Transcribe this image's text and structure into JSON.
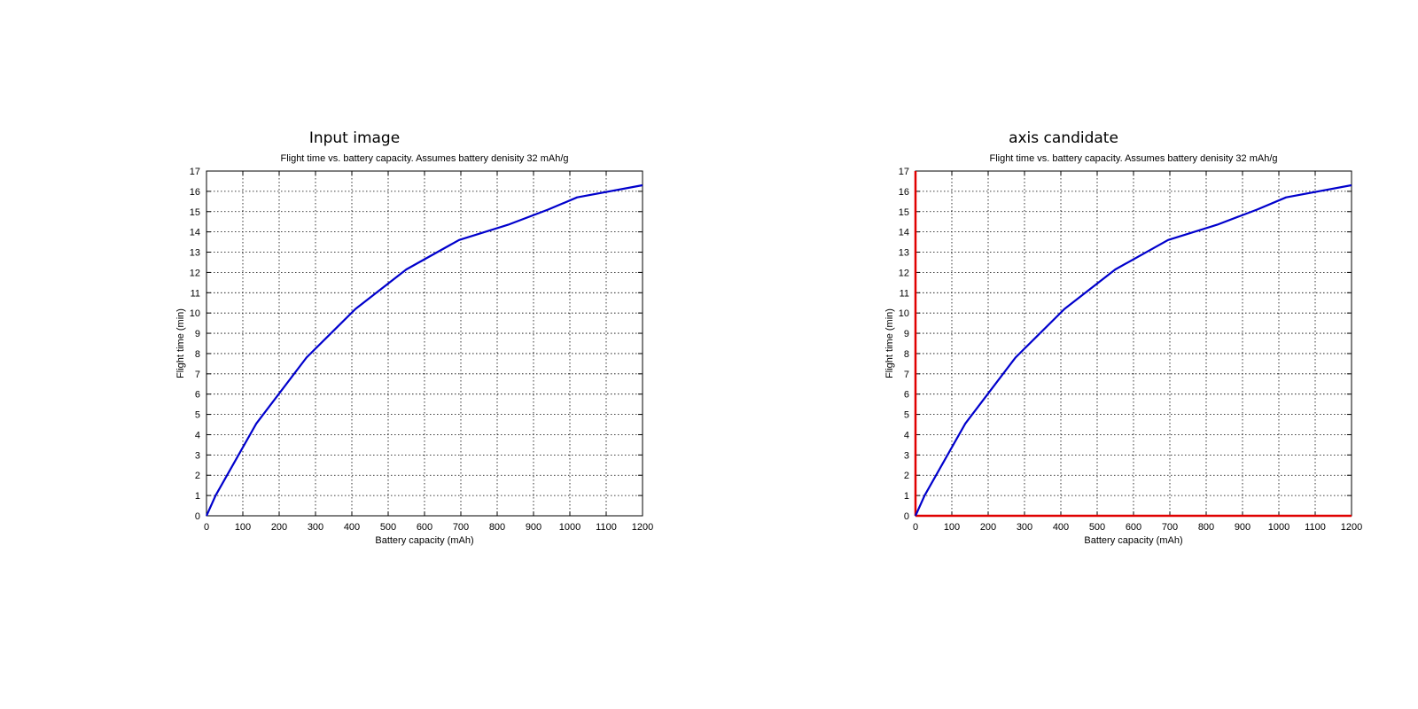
{
  "panels": [
    {
      "figure_title": "Input image",
      "highlight_axes": false,
      "highlight_color": "#e00000",
      "chart": {
        "type": "line",
        "title": "Flight time vs. battery capacity. Assumes battery denisity 32 mAh/g",
        "xlabel": "Battery capacity (mAh)",
        "ylabel": "Flight time (min)",
        "xlim": [
          0,
          1200
        ],
        "ylim": [
          0,
          17
        ],
        "xticks": [
          0,
          100,
          200,
          300,
          400,
          500,
          600,
          700,
          800,
          900,
          1000,
          1100,
          1200
        ],
        "yticks": [
          0,
          1,
          2,
          3,
          4,
          5,
          6,
          7,
          8,
          9,
          10,
          11,
          12,
          13,
          14,
          15,
          16,
          17
        ],
        "grid": true,
        "line_color": "#0000cc"
      }
    },
    {
      "figure_title": "axis candidate",
      "highlight_axes": true,
      "highlight_color": "#e00000",
      "chart": {
        "type": "line",
        "title": "Flight time vs. battery capacity. Assumes battery denisity 32 mAh/g",
        "xlabel": "Battery capacity (mAh)",
        "ylabel": "Flight time (min)",
        "xlim": [
          0,
          1200
        ],
        "ylim": [
          0,
          17
        ],
        "xticks": [
          0,
          100,
          200,
          300,
          400,
          500,
          600,
          700,
          800,
          900,
          1000,
          1100,
          1200
        ],
        "yticks": [
          0,
          1,
          2,
          3,
          4,
          5,
          6,
          7,
          8,
          9,
          10,
          11,
          12,
          13,
          14,
          15,
          16,
          17
        ],
        "grid": true,
        "line_color": "#0000cc"
      }
    }
  ],
  "chart_data": [
    {
      "type": "line",
      "title": "Flight time vs. battery capacity. Assumes battery denisity 32 mAh/g",
      "xlabel": "Battery capacity (mAh)",
      "ylabel": "Flight time (min)",
      "xlim": [
        0,
        1200
      ],
      "ylim": [
        0,
        17
      ],
      "grid": true,
      "series": [
        {
          "x": [
            0,
            25,
            137,
            275,
            410,
            550,
            695,
            830,
            940,
            1020,
            1200
          ],
          "y": [
            0,
            1.0,
            4.55,
            7.8,
            10.2,
            12.15,
            13.6,
            14.35,
            15.1,
            15.7,
            16.3
          ]
        }
      ]
    },
    {
      "type": "line",
      "title": "Flight time vs. battery capacity. Assumes battery denisity 32 mAh/g",
      "xlabel": "Battery capacity (mAh)",
      "ylabel": "Flight time (min)",
      "xlim": [
        0,
        1200
      ],
      "ylim": [
        0,
        17
      ],
      "grid": true,
      "series": [
        {
          "x": [
            0,
            25,
            137,
            275,
            410,
            550,
            695,
            830,
            940,
            1020,
            1200
          ],
          "y": [
            0,
            1.0,
            4.55,
            7.8,
            10.2,
            12.15,
            13.6,
            14.35,
            15.1,
            15.7,
            16.3
          ]
        }
      ]
    }
  ]
}
